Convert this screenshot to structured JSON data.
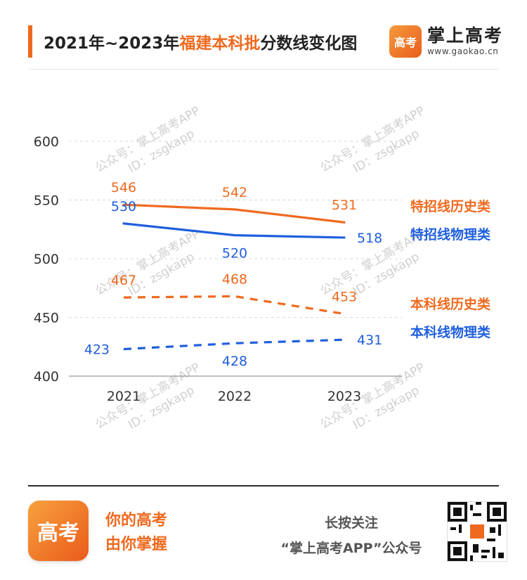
{
  "header": {
    "title_prefix": "2021年~2023年",
    "title_highlight": "福建本科批",
    "title_suffix": "分数线变化图",
    "brand_name": "掌上高考",
    "brand_url": "www.gaokao.cn",
    "brand_logo_text": "高考"
  },
  "watermark": {
    "line1": "公众号：掌上高考APP",
    "line2": "ID：zsgkapp"
  },
  "chart_data": {
    "type": "line",
    "categories": [
      "2021",
      "2022",
      "2023"
    ],
    "ylim": [
      400,
      600
    ],
    "yticks": [
      "600",
      "550",
      "500",
      "450",
      "400"
    ],
    "grid": true,
    "legend_placement": "right",
    "series": [
      {
        "name": "特招线历史类",
        "values": [
          546,
          542,
          531
        ],
        "color": "#ef6a1f",
        "style": "solid"
      },
      {
        "name": "特招线物理类",
        "values": [
          530,
          520,
          518
        ],
        "color": "#1f5fde",
        "style": "solid"
      },
      {
        "name": "本科线历史类",
        "values": [
          467,
          468,
          453
        ],
        "color": "#ef6a1f",
        "style": "dashed"
      },
      {
        "name": "本科线物理类",
        "values": [
          423,
          428,
          431
        ],
        "color": "#1f5fde",
        "style": "dashed"
      }
    ]
  },
  "footer": {
    "app_logo_text": "高考",
    "slogan_line1": "你的高考",
    "slogan_line2": "由你掌握",
    "follow_line1": "长按关注",
    "follow_line2": "“掌上高考APP”公众号",
    "qr_icon": "qr-code-icon"
  }
}
